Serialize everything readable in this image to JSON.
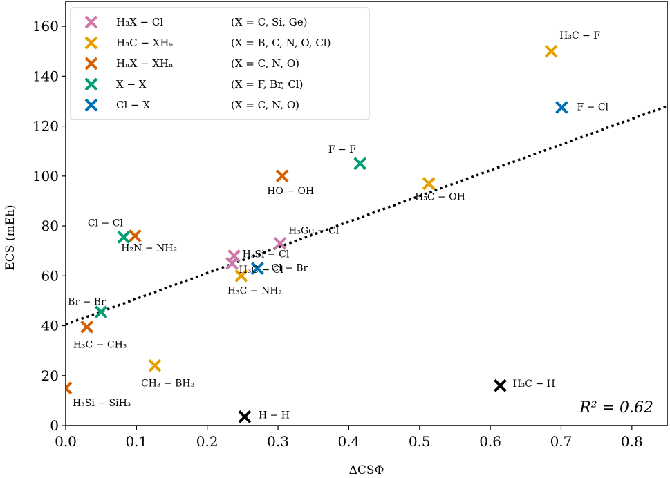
{
  "chart_data": {
    "type": "scatter",
    "xlabel": "ΔCSΦ",
    "ylabel": "ECS (mEh)",
    "xlim": [
      0,
      0.85
    ],
    "ylim": [
      0,
      170
    ],
    "xticks": [
      0,
      0.1,
      0.2,
      0.3,
      0.4,
      0.5,
      0.6,
      0.7,
      0.8
    ],
    "xtick_labels": [
      "0.0",
      "0.1",
      "0.2",
      "0.3",
      "0.4",
      "0.5",
      "0.6",
      "0.7",
      "0.8"
    ],
    "yticks": [
      0,
      20,
      40,
      60,
      80,
      100,
      120,
      140,
      160
    ],
    "ytick_labels": [
      "0",
      "20",
      "40",
      "60",
      "80",
      "100",
      "120",
      "140",
      "160"
    ],
    "grid": false,
    "legend_position": "top-left",
    "annotation": "R² = 0.62",
    "fit_line": {
      "style": "dotted",
      "intercept": 40.5,
      "slope": 103.0,
      "color": "#000000"
    },
    "series": [
      {
        "name": "H₃X − Cl",
        "condition": "(X = C, Si, Ge)",
        "color": "#cc79a7",
        "points": [
          {
            "x": 0.235,
            "y": 65,
            "label": "H₃C − Cl"
          },
          {
            "x": 0.238,
            "y": 68,
            "label": "H₃Si − Cl"
          },
          {
            "x": 0.303,
            "y": 73,
            "label": "H₃Ge − Cl"
          }
        ]
      },
      {
        "name": "H₃C − XHₙ",
        "condition": "(X = B, C, N, O, Cl)",
        "color": "#e69f00",
        "points": [
          {
            "x": 0.686,
            "y": 150,
            "label": "H₃C − F"
          },
          {
            "x": 0.513,
            "y": 97,
            "label": "H₃C − OH"
          },
          {
            "x": 0.248,
            "y": 60,
            "label": "H₃C − NH₂"
          },
          {
            "x": 0.126,
            "y": 24,
            "label": "CH₃ − BH₂"
          }
        ]
      },
      {
        "name": "HₙX − XHₙ",
        "condition": "(X = C, N, O)",
        "color": "#d55e00",
        "points": [
          {
            "x": 0.306,
            "y": 100,
            "label": "HO − OH"
          },
          {
            "x": 0.098,
            "y": 76,
            "label": "H₂N − NH₂"
          },
          {
            "x": 0.03,
            "y": 39.5,
            "label": "H₃C − CH₃"
          },
          {
            "x": 0.0,
            "y": 15,
            "label": "H₃Si − SiH₃"
          }
        ]
      },
      {
        "name": "X − X",
        "condition": "(X = F, Br, Cl)",
        "color": "#009e73",
        "points": [
          {
            "x": 0.416,
            "y": 105,
            "label": "F − F"
          },
          {
            "x": 0.082,
            "y": 75.5,
            "label": "Cl − Cl"
          },
          {
            "x": 0.05,
            "y": 45.5,
            "label": "Br − Br"
          }
        ]
      },
      {
        "name": "Cl − X",
        "condition": "(X = C, N, O)",
        "color": "#0072b2",
        "points": [
          {
            "x": 0.701,
            "y": 127.5,
            "label": "F − Cl"
          },
          {
            "x": 0.271,
            "y": 63,
            "label": "Cl − Br"
          }
        ]
      },
      {
        "color": "#000000",
        "points": [
          {
            "x": 0.614,
            "y": 16,
            "label": "H₃C − H"
          },
          {
            "x": 0.253,
            "y": 3.5,
            "label": "H − H"
          }
        ]
      }
    ]
  }
}
